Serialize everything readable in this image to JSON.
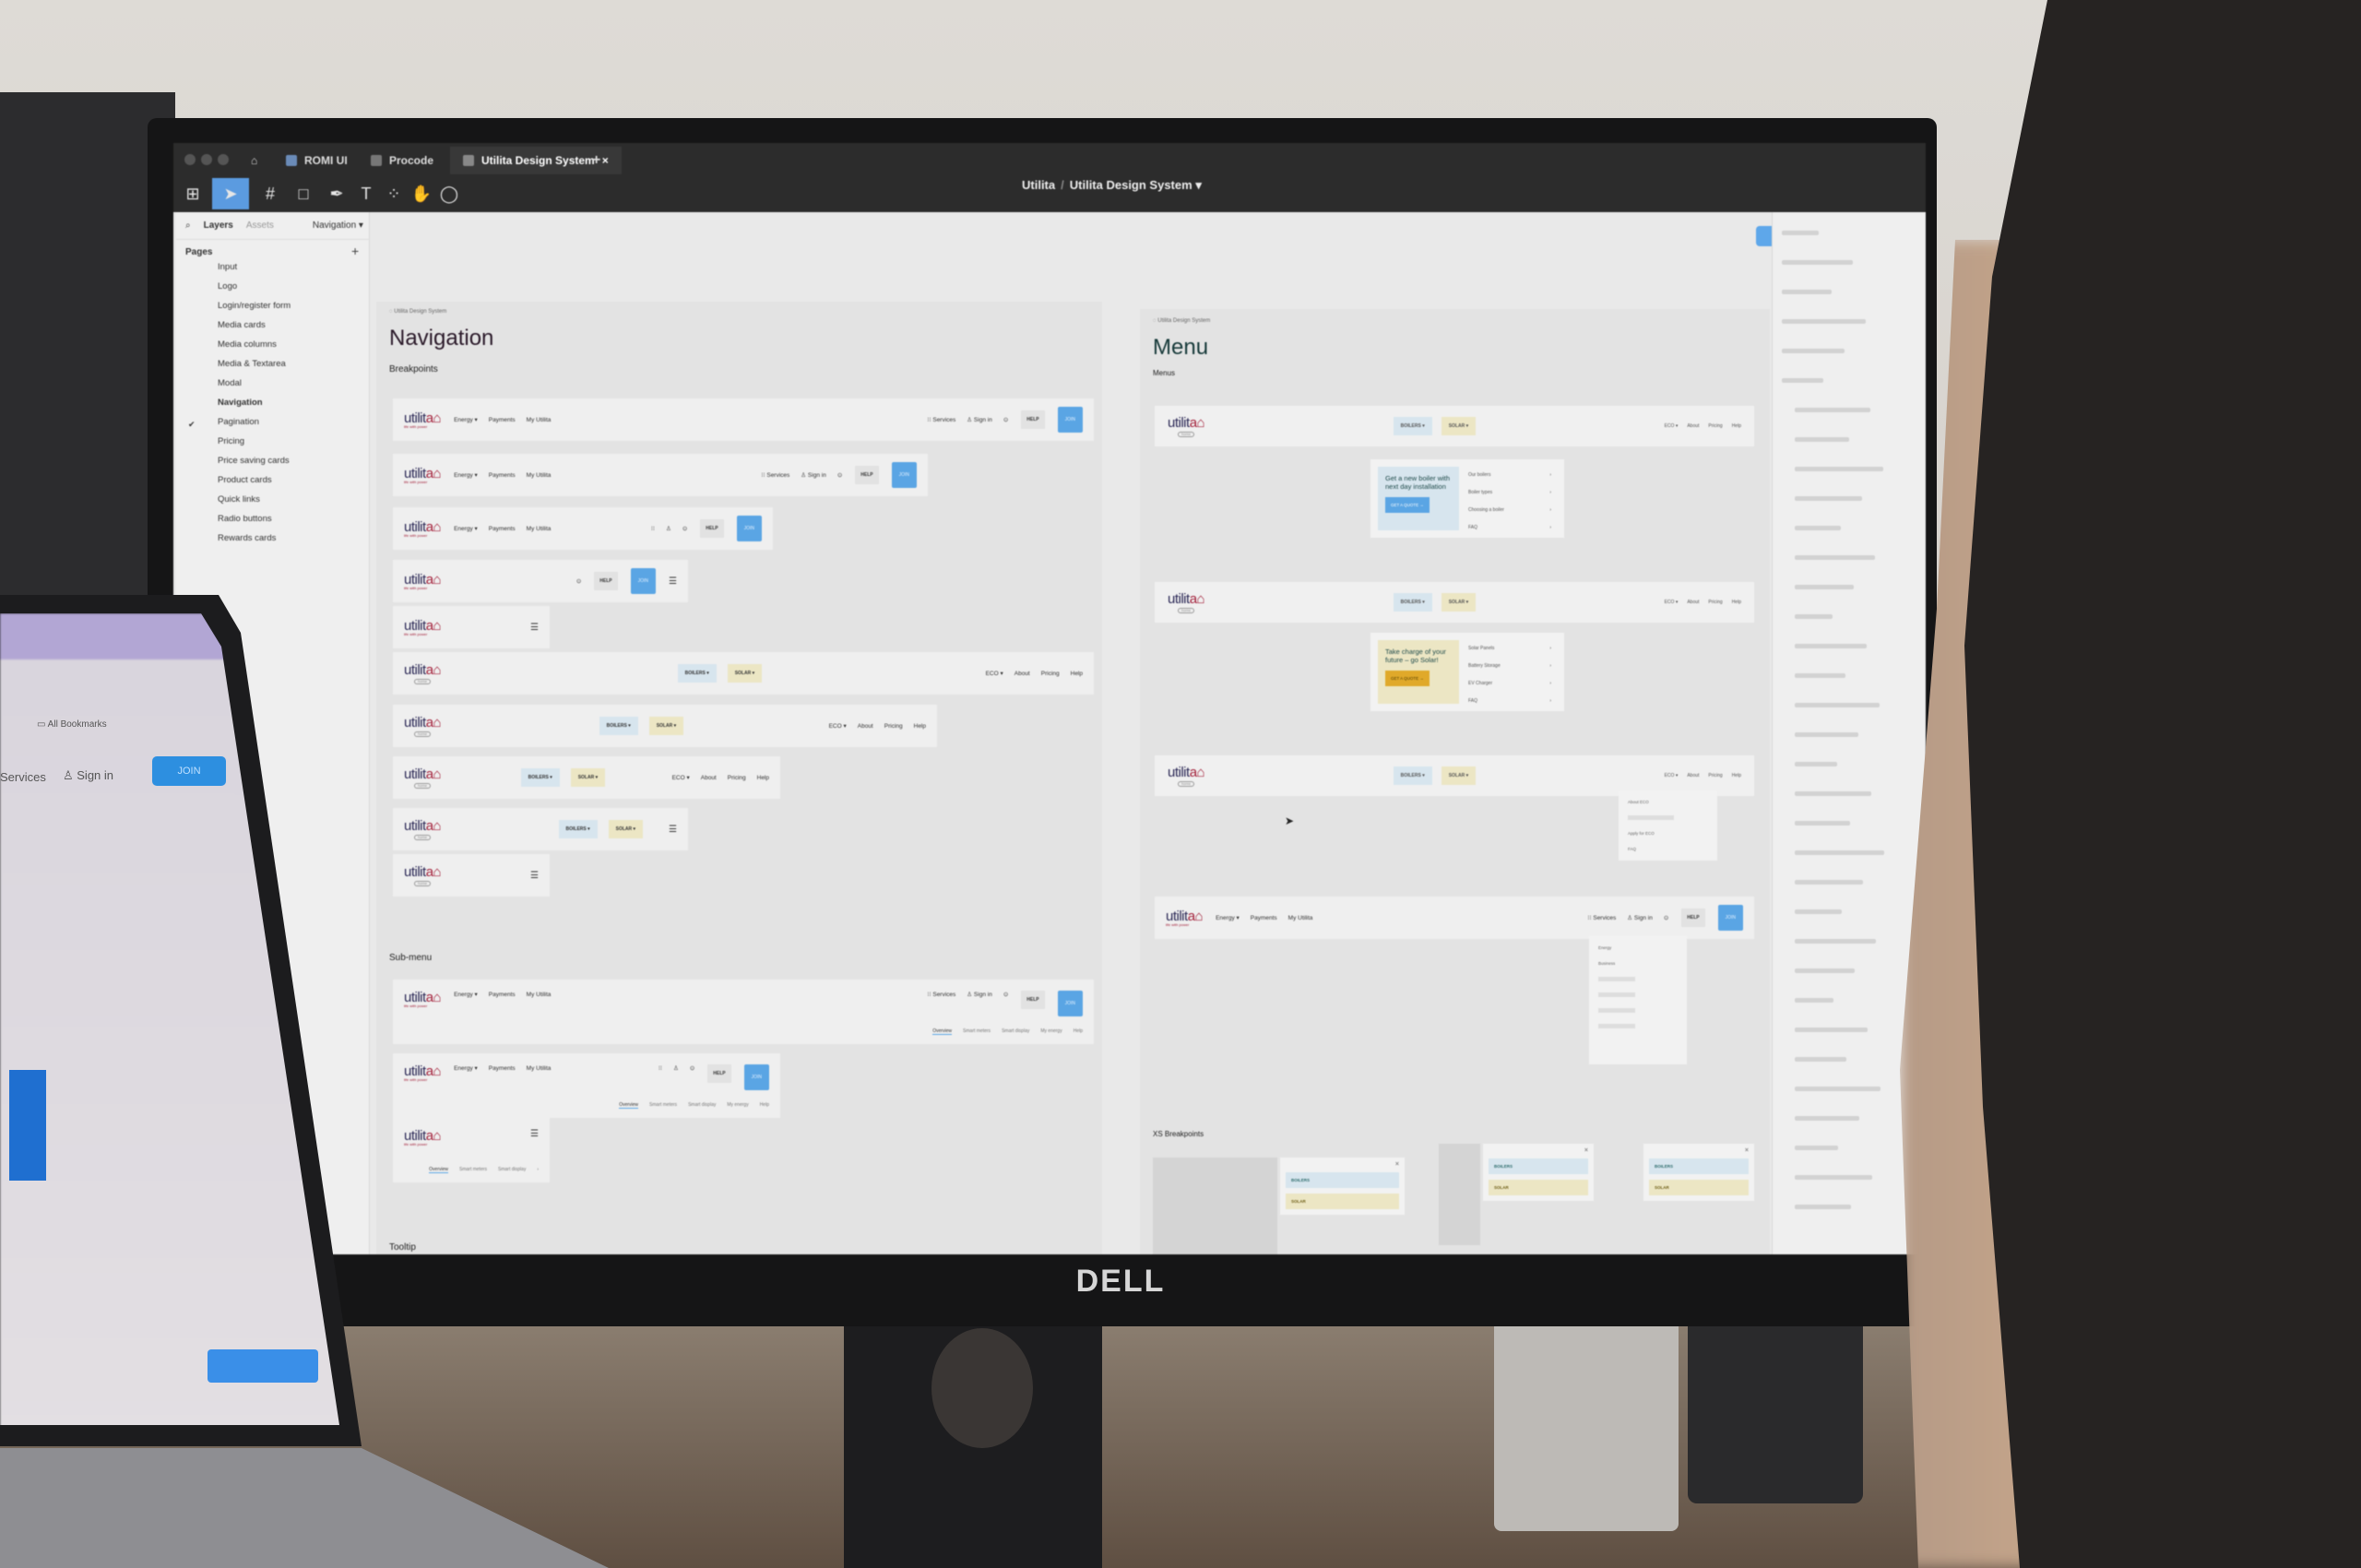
{
  "window": {
    "tabs": [
      {
        "label": "ROMI UI"
      },
      {
        "label": "Procode"
      },
      {
        "label": "Utilita Design System",
        "close": "×"
      }
    ],
    "new_tab": "+"
  },
  "toolbar": {
    "icons": [
      "figma-menu-icon",
      "move-tool-icon",
      "frame-tool-icon",
      "rectangle-tool-icon",
      "pen-tool-icon",
      "text-tool-icon",
      "resources-icon",
      "hand-tool-icon",
      "comment-icon"
    ]
  },
  "file": {
    "team": "Utilita",
    "separator": "/",
    "name": "Utilita Design System",
    "chevron": "▾"
  },
  "left_panel": {
    "search_icon": "⌕",
    "tab_layers": "Layers",
    "tab_assets": "Assets",
    "page_dropdown": "Navigation ▾",
    "pages_heading": "Pages",
    "add_page": "+",
    "pages": [
      "Input",
      "Logo",
      "Login/register form",
      "Media cards",
      "Media columns",
      "Media & Textarea",
      "Modal",
      "Navigation",
      "Pagination",
      "Pricing",
      "Price saving cards",
      "Product cards",
      "Quick links",
      "Radio buttons",
      "Rewards cards"
    ],
    "current_page": "Navigation",
    "check": "✔"
  },
  "brand": {
    "logo_a": "utilit",
    "logo_b": "a⌂",
    "tagline": "life with power",
    "home_badge": "home"
  },
  "nav_frame": {
    "breadcrumb": "◌ Utilita Design System",
    "title": "Navigation",
    "section_breakpoints": "Breakpoints",
    "section_submenu": "Sub-menu",
    "section_tooltip": "Tooltip",
    "rows": [
      {
        "left": [
          "Energy ▾",
          "Payments",
          "My Utilita"
        ],
        "right": [
          "⁝⁝ Services",
          "♙ Sign in",
          "⊙"
        ],
        "help": "HELP",
        "join": "JOIN"
      },
      {
        "left": [
          "Energy ▾",
          "Payments",
          "My Utilita"
        ],
        "right": [
          "⁝⁝ Services",
          "♙ Sign in",
          "⊙"
        ],
        "help": "HELP",
        "join": "JOIN"
      },
      {
        "left": [
          "Energy ▾",
          "Payments",
          "My Utilita"
        ],
        "right": [
          "⁝⁝",
          "♙",
          "⊙"
        ],
        "help": "HELP",
        "join": "JOIN"
      },
      {
        "left": [],
        "right": [
          "⊙"
        ],
        "help": "HELP",
        "join": "JOIN",
        "menu": "☰"
      },
      {
        "left": [],
        "right": [],
        "menu": "☰"
      },
      {
        "home": true,
        "center": [
          "BOILERS ▾",
          "SOLAR ▾"
        ],
        "right": [
          "ECO ▾",
          "About",
          "Pricing",
          "Help"
        ]
      },
      {
        "home": true,
        "center": [
          "BOILERS ▾",
          "SOLAR ▾"
        ],
        "right": [
          "ECO ▾",
          "About",
          "Pricing",
          "Help"
        ]
      },
      {
        "home": true,
        "center": [
          "BOILERS ▾",
          "SOLAR ▾"
        ],
        "right": [
          "ECO ▾",
          "About",
          "Pricing",
          "Help"
        ]
      },
      {
        "home": true,
        "center": [
          "BOILERS ▾",
          "SOLAR ▾"
        ],
        "right": [],
        "menu": "☰"
      },
      {
        "home": true,
        "center": [],
        "right": [],
        "menu": "☰"
      }
    ],
    "submenu_rows": [
      {
        "left": [
          "Energy ▾",
          "Payments",
          "My Utilita"
        ],
        "right": [
          "⁝⁝ Services",
          "♙ Sign in",
          "⊙"
        ],
        "help": "HELP",
        "join": "JOIN",
        "tabs": [
          "Overview",
          "Smart meters",
          "Smart display",
          "My energy",
          "Help"
        ]
      },
      {
        "left": [
          "Energy ▾",
          "Payments",
          "My Utilita"
        ],
        "right": [
          "⁝⁝",
          "♙",
          "⊙"
        ],
        "help": "HELP",
        "join": "JOIN",
        "tabs": [
          "Overview",
          "Smart meters",
          "Smart display",
          "My energy",
          "Help"
        ]
      },
      {
        "left": [],
        "right": [],
        "menu": "☰",
        "tabs": [
          "Overview",
          "Smart meters",
          "Smart display",
          "›"
        ]
      }
    ]
  },
  "menu_frame": {
    "breadcrumb": "◌ Utilita Design System",
    "title": "Menu",
    "section_menus": "Menus",
    "section_xs": "XS Breakpoints",
    "nav": {
      "boilers": "BOILERS ▾",
      "solar": "SOLAR ▾",
      "right": [
        "ECO ▾",
        "About",
        "Pricing",
        "Help"
      ]
    },
    "boiler_card": {
      "heading": "Get a new boiler with next day installation",
      "button": "GET A QUOTE →",
      "items": [
        "Our boilers",
        "Boiler types",
        "Choosing a boiler",
        "FAQ"
      ],
      "arrow": "›"
    },
    "solar_card": {
      "heading": "Take charge of your future – go Solar!",
      "button": "GET A QUOTE →",
      "items": [
        "Solar Panels",
        "Battery Storage",
        "EV Charger",
        "FAQ"
      ],
      "arrow": "›"
    },
    "eco_dropdown": [
      "About ECO",
      "",
      "Apply for ECO",
      "FAQ"
    ],
    "services_nav": {
      "left": [
        "Energy ▾",
        "Payments",
        "My Utilita"
      ],
      "right": [
        "⁝⁝ Services",
        "♙ Sign in",
        "⊙"
      ],
      "help": "HELP",
      "join": "JOIN"
    },
    "services_dropdown": [
      "Energy",
      "Business",
      "",
      "",
      "",
      ""
    ],
    "xs_cards": [
      {
        "boilers": "BOILERS",
        "solar": "SOLAR",
        "close": "×"
      },
      {
        "boilers": "BOILERS",
        "solar": "SOLAR",
        "close": "×"
      },
      {
        "boilers": "BOILERS",
        "solar": "SOLAR",
        "close": "×"
      }
    ]
  },
  "colors": {
    "join_blue": "#5aa5e4",
    "brand_navy": "#2d2a57",
    "brand_red": "#a3203a",
    "boilers_bg": "#d7e5ee",
    "solar_bg": "#ece6c4",
    "solar_button": "#e0a92a",
    "figma_selected": "#5b9be0"
  },
  "monitor": {
    "brand": "DELL"
  },
  "laptop": {
    "services": "Services",
    "sign_in": "♙ Sign in",
    "join": "JOIN",
    "bookmarks": "▭ All Bookmarks"
  }
}
